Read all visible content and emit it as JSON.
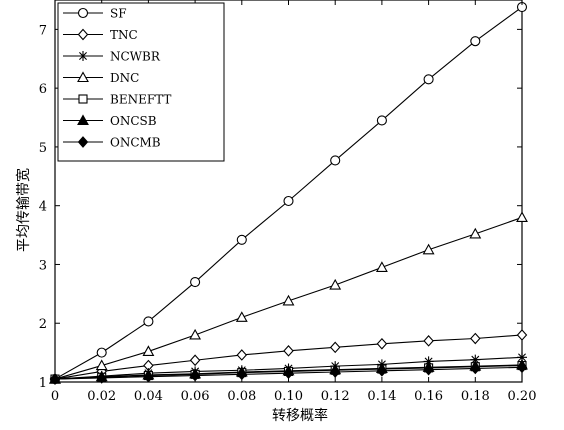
{
  "chart_data": {
    "type": "line",
    "title": "",
    "xlabel": "转移概率",
    "ylabel": "平均传输带宽",
    "xlim": [
      0,
      0.2
    ],
    "ylim": [
      1,
      7.5
    ],
    "grid": false,
    "legend_position": "top-left",
    "x": [
      0,
      0.02,
      0.04,
      0.06,
      0.08,
      0.1,
      0.12,
      0.14,
      0.16,
      0.18,
      0.2
    ],
    "x_tick_labels": [
      "0",
      "0.02",
      "0.04",
      "0.06",
      "0.08",
      "0.10",
      "0.12",
      "0.14",
      "0.16",
      "0.18",
      "0.20"
    ],
    "y_ticks": [
      1,
      2,
      3,
      4,
      5,
      6,
      7
    ],
    "series": [
      {
        "name": "SF",
        "marker": "circle",
        "values": [
          1.05,
          1.5,
          2.03,
          2.7,
          3.42,
          4.08,
          4.77,
          5.45,
          6.15,
          6.8,
          7.38
        ]
      },
      {
        "name": "TNC",
        "marker": "diamond",
        "values": [
          1.05,
          1.18,
          1.28,
          1.37,
          1.46,
          1.53,
          1.59,
          1.65,
          1.7,
          1.74,
          1.8
        ]
      },
      {
        "name": "NCWBR",
        "marker": "asterisk",
        "values": [
          1.05,
          1.1,
          1.15,
          1.18,
          1.2,
          1.23,
          1.27,
          1.3,
          1.35,
          1.38,
          1.42
        ]
      },
      {
        "name": "DNC",
        "marker": "triangle",
        "values": [
          1.05,
          1.28,
          1.52,
          1.8,
          2.1,
          2.38,
          2.65,
          2.95,
          3.25,
          3.52,
          3.8
        ]
      },
      {
        "name": "BENEFTT",
        "marker": "square",
        "values": [
          1.05,
          1.08,
          1.11,
          1.13,
          1.16,
          1.18,
          1.2,
          1.22,
          1.24,
          1.26,
          1.28
        ]
      },
      {
        "name": "ONCSB",
        "marker": "filled-triangle",
        "values": [
          1.05,
          1.09,
          1.12,
          1.14,
          1.17,
          1.19,
          1.21,
          1.23,
          1.25,
          1.27,
          1.29
        ]
      },
      {
        "name": "ONCMB",
        "marker": "filled-diamond",
        "values": [
          1.05,
          1.07,
          1.09,
          1.11,
          1.13,
          1.15,
          1.17,
          1.19,
          1.21,
          1.23,
          1.25
        ]
      }
    ]
  }
}
